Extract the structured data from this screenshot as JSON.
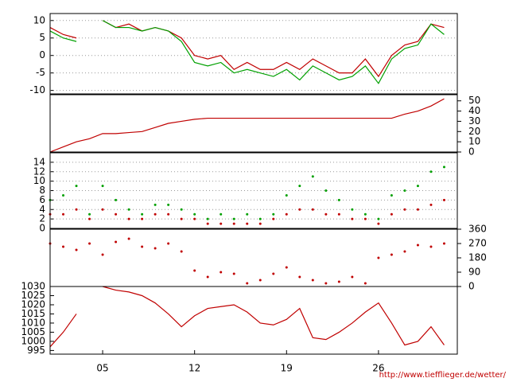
{
  "chart_data": [
    {
      "type": "line",
      "yaxis_side": "left",
      "grid": true,
      "x": [
        1,
        2,
        3,
        4,
        5,
        6,
        7,
        8,
        9,
        10,
        11,
        12,
        13,
        14,
        15,
        16,
        17,
        18,
        19,
        20,
        21,
        22,
        23,
        24,
        25,
        26,
        27,
        28,
        29,
        30,
        31
      ],
      "series": [
        {
          "color": "#c00000",
          "values": [
            8,
            6,
            5,
            null,
            10,
            8,
            9,
            7,
            8,
            7,
            5,
            0,
            -1,
            0,
            -4,
            -2,
            -4,
            -4,
            -2,
            -4,
            -1,
            -3,
            -5,
            -5,
            -1,
            -6,
            0,
            3,
            4,
            9,
            8
          ]
        },
        {
          "color": "#00a000",
          "values": [
            7,
            5,
            4,
            null,
            10,
            8,
            8,
            7,
            8,
            7,
            4,
            -2,
            -3,
            -2,
            -5,
            -4,
            -5,
            -6,
            -4,
            -7,
            -3,
            -5,
            -7,
            -6,
            -3,
            -8,
            -1,
            2,
            3,
            9,
            6
          ]
        }
      ],
      "xlim": [
        1,
        32
      ],
      "ylim": [
        -11,
        12
      ],
      "yticks": [
        -10,
        -5,
        0,
        5,
        10
      ]
    },
    {
      "type": "line",
      "yaxis_side": "right",
      "grid": false,
      "x": [
        1,
        2,
        3,
        4,
        5,
        6,
        7,
        8,
        9,
        10,
        11,
        12,
        13,
        14,
        15,
        16,
        17,
        18,
        19,
        20,
        21,
        22,
        23,
        24,
        25,
        26,
        27,
        28,
        29,
        30,
        31
      ],
      "series": [
        {
          "color": "#c00000",
          "values": [
            0,
            5,
            10,
            13,
            18,
            18,
            19,
            20,
            24,
            28,
            30,
            32,
            33,
            33,
            33,
            33,
            33,
            33,
            33,
            33,
            33,
            33,
            33,
            33,
            33,
            33,
            33,
            37,
            40,
            45,
            52
          ]
        }
      ],
      "xlim": [
        1,
        32
      ],
      "ylim": [
        0,
        56
      ],
      "yticks": [
        0,
        10,
        20,
        30,
        40,
        50
      ]
    },
    {
      "type": "scatter",
      "yaxis_side": "left",
      "grid": true,
      "x": [
        1,
        2,
        3,
        4,
        5,
        6,
        7,
        8,
        9,
        10,
        11,
        12,
        13,
        14,
        15,
        16,
        17,
        18,
        19,
        20,
        21,
        22,
        23,
        24,
        25,
        26,
        27,
        28,
        29,
        30,
        31
      ],
      "series": [
        {
          "color": "#00a000",
          "values": [
            6,
            7,
            9,
            3,
            9,
            6,
            4,
            3,
            5,
            5,
            4,
            3,
            2,
            3,
            2,
            3,
            2,
            3,
            7,
            9,
            11,
            8,
            6,
            4,
            3,
            2,
            7,
            8,
            9,
            12,
            13
          ]
        },
        {
          "color": "#c00000",
          "values": [
            3,
            3,
            4,
            2,
            4,
            3,
            2,
            2,
            3,
            3,
            2,
            2,
            1,
            1,
            1,
            1,
            1,
            2,
            3,
            4,
            4,
            3,
            3,
            2,
            2,
            1,
            3,
            4,
            4,
            5,
            6
          ]
        }
      ],
      "xlim": [
        1,
        32
      ],
      "ylim": [
        0,
        16
      ],
      "yticks": [
        0,
        2,
        4,
        6,
        8,
        10,
        12,
        14
      ]
    },
    {
      "type": "scatter",
      "yaxis_side": "right",
      "grid": false,
      "x": [
        1,
        2,
        3,
        4,
        5,
        6,
        7,
        8,
        9,
        10,
        11,
        12,
        13,
        14,
        15,
        16,
        17,
        18,
        19,
        20,
        21,
        22,
        23,
        24,
        25,
        26,
        27,
        28,
        29,
        30,
        31
      ],
      "series": [
        {
          "color": "#c00000",
          "values": [
            270,
            250,
            230,
            270,
            200,
            280,
            300,
            250,
            240,
            270,
            220,
            100,
            60,
            90,
            80,
            20,
            40,
            80,
            120,
            60,
            40,
            20,
            30,
            60,
            20,
            180,
            200,
            220,
            260,
            250,
            270
          ]
        }
      ],
      "xlim": [
        1,
        32
      ],
      "ylim": [
        0,
        360
      ],
      "yticks": [
        0,
        90,
        180,
        270,
        360
      ]
    },
    {
      "type": "line",
      "yaxis_side": "left",
      "grid": false,
      "x": [
        1,
        2,
        3,
        4,
        5,
        6,
        7,
        8,
        9,
        10,
        11,
        12,
        13,
        14,
        15,
        16,
        17,
        18,
        19,
        20,
        21,
        22,
        23,
        24,
        25,
        26,
        27,
        28,
        29,
        30,
        31
      ],
      "series": [
        {
          "color": "#c00000",
          "values": [
            997,
            1005,
            1015,
            null,
            1030,
            1028,
            1027,
            1025,
            1021,
            1015,
            1008,
            1014,
            1018,
            1019,
            1020,
            1016,
            1010,
            1009,
            1012,
            1018,
            1002,
            1001,
            1005,
            1010,
            1016,
            1021,
            1010,
            998,
            1000,
            1008,
            998
          ]
        }
      ],
      "xlim": [
        1,
        32
      ],
      "ylim": [
        993,
        1030
      ],
      "yticks": [
        995,
        1000,
        1005,
        1010,
        1015,
        1020,
        1025,
        1030
      ],
      "xticks": [
        {
          "value": 5,
          "label": "05"
        },
        {
          "value": 12,
          "label": "12"
        },
        {
          "value": 19,
          "label": "19"
        },
        {
          "value": 26,
          "label": "26"
        }
      ]
    }
  ],
  "footer": "http://www.tiefflieger.de/wetter/"
}
